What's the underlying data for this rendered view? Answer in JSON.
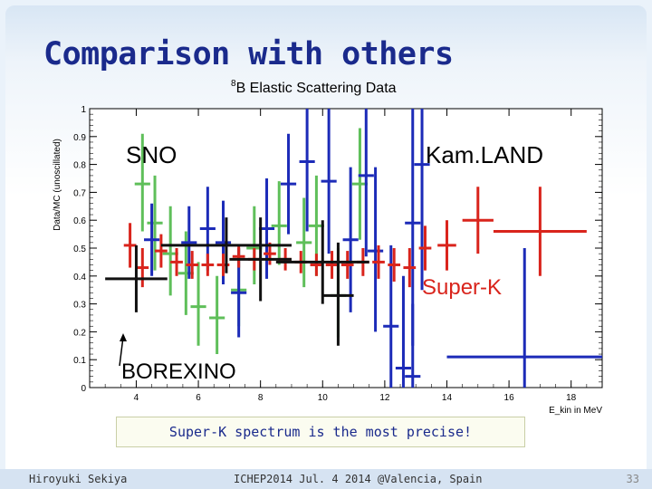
{
  "slide": {
    "title": "Comparison with others",
    "callout": "Super-K spectrum is the most precise!",
    "footer_left": "Hiroyuki Sekiya",
    "footer_center": "ICHEP2014  Jul. 4 2014  @Valencia, Spain",
    "page_number": "33"
  },
  "chart_data": {
    "type": "scatter",
    "title_sup": "8",
    "title": "B Elastic Scattering Data",
    "xlabel": "E_kin in MeV",
    "ylabel": "Data/MC (unoscillated)",
    "xlim": [
      2.5,
      19
    ],
    "ylim": [
      0,
      1
    ],
    "xticks": [
      4,
      6,
      8,
      10,
      12,
      14,
      16,
      18
    ],
    "yticks": [
      0,
      0.1,
      0.2,
      0.3,
      0.4,
      0.5,
      0.6,
      0.7,
      0.8,
      0.9,
      1
    ],
    "yticklabels": [
      "0",
      "0.1",
      "0.2",
      "0.3",
      "0.4",
      "0.5",
      "0.6",
      "0.7",
      "0.8",
      "0.9",
      "1"
    ],
    "annotations": [
      "SNO",
      "Kam.LAND",
      "Super-K",
      "BOREXINO"
    ],
    "series": [
      {
        "color": "#5fbf5a",
        "points": [
          {
            "x": 4.2,
            "y": 0.73,
            "xerr": 0.25,
            "ylo": 0.56,
            "yhi": 0.91
          },
          {
            "x": 4.6,
            "y": 0.59,
            "xerr": 0.25,
            "ylo": 0.42,
            "yhi": 0.76
          },
          {
            "x": 5.1,
            "y": 0.48,
            "xerr": 0.25,
            "ylo": 0.33,
            "yhi": 0.65
          },
          {
            "x": 5.6,
            "y": 0.41,
            "xerr": 0.25,
            "ylo": 0.26,
            "yhi": 0.56
          },
          {
            "x": 6.0,
            "y": 0.29,
            "xerr": 0.25,
            "ylo": 0.15,
            "yhi": 0.45
          },
          {
            "x": 6.6,
            "y": 0.25,
            "xerr": 0.25,
            "ylo": 0.12,
            "yhi": 0.4
          },
          {
            "x": 7.3,
            "y": 0.35,
            "xerr": 0.25,
            "ylo": 0.22,
            "yhi": 0.5
          },
          {
            "x": 7.8,
            "y": 0.5,
            "xerr": 0.25,
            "ylo": 0.37,
            "yhi": 0.65
          },
          {
            "x": 8.6,
            "y": 0.58,
            "xerr": 0.25,
            "ylo": 0.44,
            "yhi": 0.74
          },
          {
            "x": 9.4,
            "y": 0.52,
            "xerr": 0.25,
            "ylo": 0.36,
            "yhi": 0.68
          },
          {
            "x": 9.8,
            "y": 0.58,
            "xerr": 0.25,
            "ylo": 0.4,
            "yhi": 0.76
          },
          {
            "x": 10.5,
            "y": 0.33,
            "xerr": 0.25,
            "ylo": 0.18,
            "yhi": 0.5
          },
          {
            "x": 11.2,
            "y": 0.73,
            "xerr": 0.25,
            "ylo": 0.53,
            "yhi": 0.93
          }
        ]
      },
      {
        "color": "#1c2bb8",
        "points": [
          {
            "x": 4.5,
            "y": 0.53,
            "xerr": 0.25,
            "ylo": 0.4,
            "yhi": 0.66
          },
          {
            "x": 5.7,
            "y": 0.52,
            "xerr": 0.25,
            "ylo": 0.39,
            "yhi": 0.65
          },
          {
            "x": 6.3,
            "y": 0.57,
            "xerr": 0.25,
            "ylo": 0.42,
            "yhi": 0.72
          },
          {
            "x": 6.8,
            "y": 0.52,
            "xerr": 0.25,
            "ylo": 0.37,
            "yhi": 0.67
          },
          {
            "x": 7.3,
            "y": 0.34,
            "xerr": 0.25,
            "ylo": 0.18,
            "yhi": 0.5
          },
          {
            "x": 8.2,
            "y": 0.57,
            "xerr": 0.25,
            "ylo": 0.39,
            "yhi": 0.75
          },
          {
            "x": 8.9,
            "y": 0.73,
            "xerr": 0.25,
            "ylo": 0.55,
            "yhi": 0.91
          },
          {
            "x": 9.5,
            "y": 0.81,
            "xerr": 0.25,
            "ylo": 0.56,
            "yhi": 1.0
          },
          {
            "x": 10.2,
            "y": 0.74,
            "xerr": 0.25,
            "ylo": 0.48,
            "yhi": 1.0
          },
          {
            "x": 10.9,
            "y": 0.53,
            "xerr": 0.25,
            "ylo": 0.27,
            "yhi": 0.79
          },
          {
            "x": 11.4,
            "y": 0.76,
            "xerr": 0.25,
            "ylo": 0.47,
            "yhi": 1.0
          },
          {
            "x": 11.7,
            "y": 0.49,
            "xerr": 0.25,
            "ylo": 0.2,
            "yhi": 0.79
          },
          {
            "x": 12.2,
            "y": 0.22,
            "xerr": 0.25,
            "ylo": 0.0,
            "yhi": 0.51
          },
          {
            "x": 12.9,
            "y": 0.59,
            "xerr": 0.25,
            "ylo": 0.15,
            "yhi": 1.0
          },
          {
            "x": 13.2,
            "y": 0.8,
            "xerr": 0.25,
            "ylo": 0.35,
            "yhi": 1.0
          },
          {
            "x": 12.6,
            "y": 0.07,
            "xerr": 0.25,
            "ylo": 0.0,
            "yhi": 0.4
          },
          {
            "x": 12.9,
            "y": 0.04,
            "xerr": 0.25,
            "ylo": 0.0,
            "yhi": 0.3
          },
          {
            "x": 16.5,
            "y": 0.11,
            "xerr": 2.5,
            "ylo": 0.0,
            "yhi": 0.5
          }
        ]
      },
      {
        "color": "#d9241c",
        "points": [
          {
            "x": 3.8,
            "y": 0.51,
            "xerr": 0.2,
            "ylo": 0.43,
            "yhi": 0.59
          },
          {
            "x": 4.2,
            "y": 0.43,
            "xerr": 0.2,
            "ylo": 0.36,
            "yhi": 0.5
          },
          {
            "x": 4.8,
            "y": 0.49,
            "xerr": 0.2,
            "ylo": 0.43,
            "yhi": 0.55
          },
          {
            "x": 5.3,
            "y": 0.45,
            "xerr": 0.2,
            "ylo": 0.4,
            "yhi": 0.5
          },
          {
            "x": 5.8,
            "y": 0.44,
            "xerr": 0.2,
            "ylo": 0.39,
            "yhi": 0.49
          },
          {
            "x": 6.3,
            "y": 0.44,
            "xerr": 0.2,
            "ylo": 0.4,
            "yhi": 0.48
          },
          {
            "x": 6.8,
            "y": 0.44,
            "xerr": 0.2,
            "ylo": 0.4,
            "yhi": 0.48
          },
          {
            "x": 7.3,
            "y": 0.47,
            "xerr": 0.2,
            "ylo": 0.43,
            "yhi": 0.51
          },
          {
            "x": 7.8,
            "y": 0.46,
            "xerr": 0.2,
            "ylo": 0.42,
            "yhi": 0.5
          },
          {
            "x": 8.3,
            "y": 0.48,
            "xerr": 0.2,
            "ylo": 0.44,
            "yhi": 0.52
          },
          {
            "x": 8.8,
            "y": 0.46,
            "xerr": 0.2,
            "ylo": 0.42,
            "yhi": 0.5
          },
          {
            "x": 9.3,
            "y": 0.45,
            "xerr": 0.2,
            "ylo": 0.41,
            "yhi": 0.49
          },
          {
            "x": 9.8,
            "y": 0.44,
            "xerr": 0.2,
            "ylo": 0.4,
            "yhi": 0.48
          },
          {
            "x": 10.3,
            "y": 0.44,
            "xerr": 0.2,
            "ylo": 0.39,
            "yhi": 0.49
          },
          {
            "x": 10.8,
            "y": 0.44,
            "xerr": 0.2,
            "ylo": 0.39,
            "yhi": 0.49
          },
          {
            "x": 11.3,
            "y": 0.45,
            "xerr": 0.2,
            "ylo": 0.4,
            "yhi": 0.5
          },
          {
            "x": 11.8,
            "y": 0.45,
            "xerr": 0.2,
            "ylo": 0.39,
            "yhi": 0.51
          },
          {
            "x": 12.3,
            "y": 0.44,
            "xerr": 0.2,
            "ylo": 0.38,
            "yhi": 0.5
          },
          {
            "x": 12.8,
            "y": 0.43,
            "xerr": 0.2,
            "ylo": 0.36,
            "yhi": 0.5
          },
          {
            "x": 13.3,
            "y": 0.5,
            "xerr": 0.2,
            "ylo": 0.42,
            "yhi": 0.58
          },
          {
            "x": 14.0,
            "y": 0.51,
            "xerr": 0.3,
            "ylo": 0.42,
            "yhi": 0.6
          },
          {
            "x": 15.0,
            "y": 0.6,
            "xerr": 0.5,
            "ylo": 0.48,
            "yhi": 0.72
          },
          {
            "x": 17.0,
            "y": 0.56,
            "xerr": 1.5,
            "ylo": 0.4,
            "yhi": 0.72
          }
        ]
      },
      {
        "color": "#111111",
        "points": [
          {
            "x": 4.0,
            "y": 0.39,
            "xerr": 1.0,
            "ylo": 0.27,
            "yhi": 0.51
          },
          {
            "x": 6.9,
            "y": 0.51,
            "xerr": 2.1,
            "ylo": 0.41,
            "yhi": 0.61
          },
          {
            "x": 8.0,
            "y": 0.46,
            "xerr": 1.0,
            "ylo": 0.31,
            "yhi": 0.61
          },
          {
            "x": 10.0,
            "y": 0.45,
            "xerr": 1.5,
            "ylo": 0.3,
            "yhi": 0.6
          },
          {
            "x": 10.5,
            "y": 0.33,
            "xerr": 0.5,
            "ylo": 0.15,
            "yhi": 0.52
          }
        ]
      }
    ]
  }
}
